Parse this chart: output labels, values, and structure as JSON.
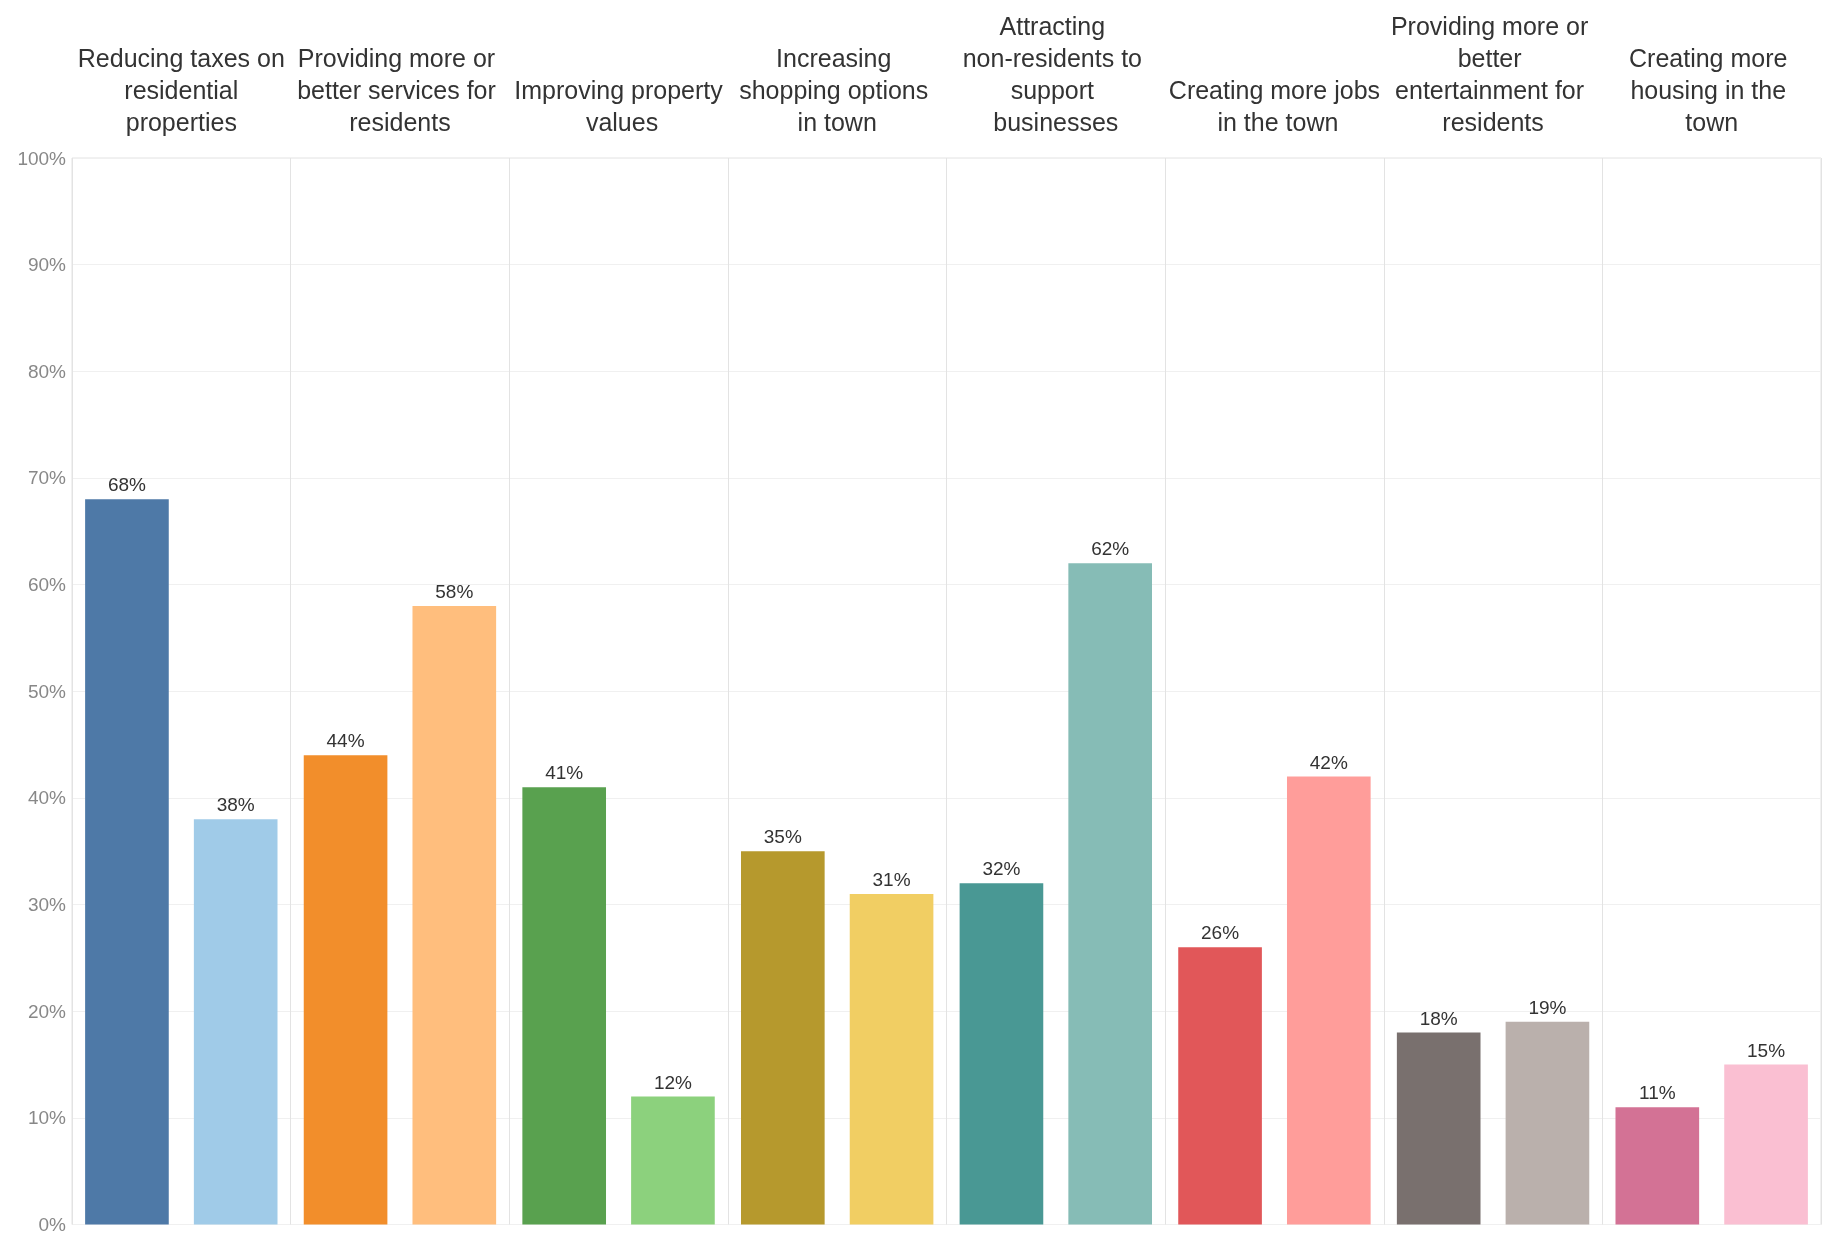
{
  "chart_data": {
    "type": "bar",
    "categories": [
      "Reducing taxes on residential properties",
      "Providing more or better services for residents",
      "Improving property values",
      "Increasing shopping options in town",
      "Attracting non-residents to support businesses",
      "Creating more jobs in the town",
      "Providing more or better entertainment for residents",
      "Creating more housing in the town"
    ],
    "series": [
      {
        "values": [
          68,
          44,
          41,
          35,
          32,
          26,
          18,
          11
        ],
        "colors": [
          "#4e79a7",
          "#f28e2b",
          "#59a14f",
          "#b6992d",
          "#499894",
          "#e15759",
          "#79706e",
          "#d37295"
        ],
        "value_labels": [
          "68%",
          "44%",
          "41%",
          "35%",
          "32%",
          "26%",
          "18%",
          "11%"
        ]
      },
      {
        "values": [
          38,
          58,
          12,
          31,
          62,
          42,
          19,
          15
        ],
        "colors": [
          "#a0cbe8",
          "#ffbe7d",
          "#8cd17d",
          "#f1ce63",
          "#86bcb6",
          "#ff9d9a",
          "#bab0ac",
          "#fabfd2"
        ],
        "value_labels": [
          "38%",
          "58%",
          "12%",
          "31%",
          "62%",
          "42%",
          "19%",
          "15%"
        ]
      }
    ],
    "ylim": [
      0,
      100
    ],
    "yticks": [
      {
        "value": 0,
        "label": "0%"
      },
      {
        "value": 10,
        "label": "10%"
      },
      {
        "value": 20,
        "label": "20%"
      },
      {
        "value": 30,
        "label": "30%"
      },
      {
        "value": 40,
        "label": "40%"
      },
      {
        "value": 50,
        "label": "50%"
      },
      {
        "value": 60,
        "label": "60%"
      },
      {
        "value": 70,
        "label": "70%"
      },
      {
        "value": 80,
        "label": "80%"
      },
      {
        "value": 90,
        "label": "90%"
      },
      {
        "value": 100,
        "label": "100%"
      }
    ],
    "grid": true
  }
}
